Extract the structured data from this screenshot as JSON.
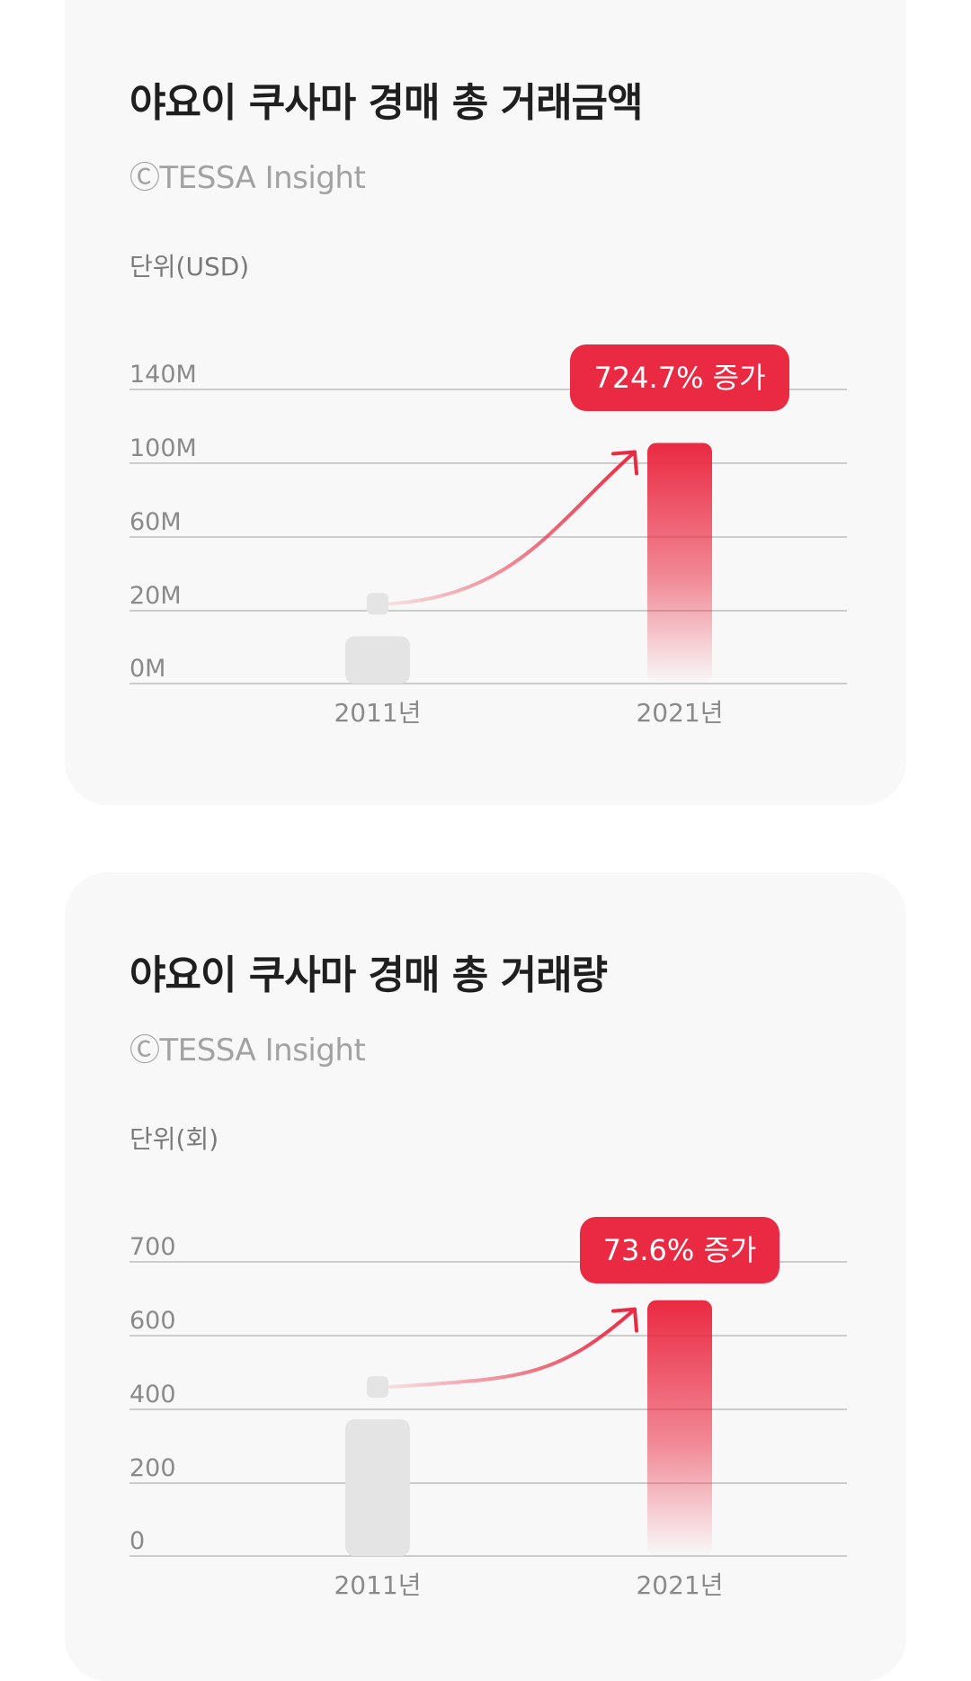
{
  "colors": {
    "accent": "#ea2a42",
    "bar_gray": "#e4e4e4",
    "grid": "#bdbdbd",
    "card_bg": "#f8f8f8"
  },
  "chart_data": [
    {
      "type": "bar",
      "title": "야요이 쿠사마 경매 총 거래금액",
      "source": "ⒸTESSA Insight",
      "unit_label": "단위(USD)",
      "categories": [
        "2011년",
        "2021년"
      ],
      "values": [
        13000000,
        111000000
      ],
      "ytick_labels": [
        "0M",
        "20M",
        "60M",
        "100M",
        "140M"
      ],
      "ylim": [
        0,
        140000000
      ],
      "grid": true,
      "annotation": "724.7% 증가"
    },
    {
      "type": "bar",
      "title": "야요이 쿠사마 경매 총 거래량",
      "source": "ⒸTESSA Insight",
      "unit_label": "단위(회)",
      "categories": [
        "2011년",
        "2021년"
      ],
      "values": [
        373,
        648
      ],
      "ytick_labels": [
        "0",
        "200",
        "400",
        "600",
        "700"
      ],
      "ylim": [
        0,
        700
      ],
      "grid": true,
      "annotation": "73.6% 증가"
    }
  ]
}
